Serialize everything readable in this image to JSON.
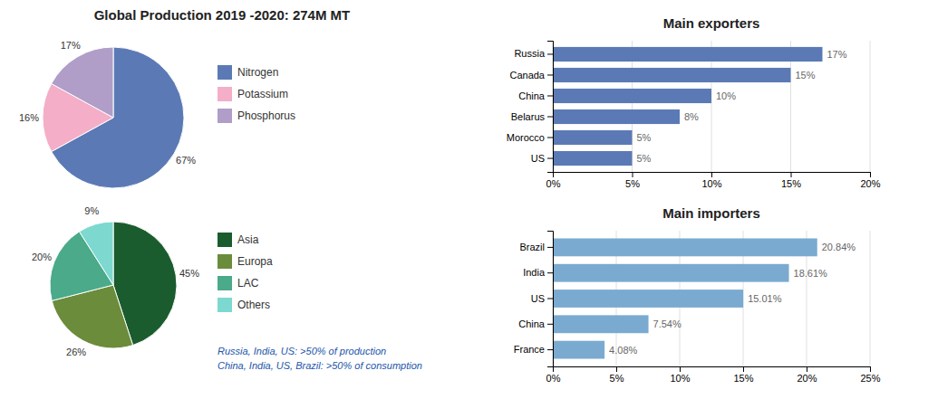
{
  "title": "Global Production  2019 -2020:  274M MT",
  "annotations": [
    "Russia, India, US: >50% of production",
    "China, India, US, Brazil: >50% of consumption"
  ],
  "chart_data": [
    {
      "type": "pie",
      "categories": [
        "Nitrogen",
        "Potassium",
        "Phosphorus"
      ],
      "values": [
        67,
        16,
        17
      ],
      "value_labels": [
        "67%",
        "16%",
        "17%"
      ],
      "colors": [
        "#5b7ab5",
        "#f4aec8",
        "#b09dc8"
      ],
      "data_labels": true,
      "legend": "right"
    },
    {
      "type": "pie",
      "categories": [
        "Asia",
        "Europa",
        "LAC",
        "Others"
      ],
      "values": [
        45,
        26,
        20,
        9
      ],
      "value_labels": [
        "45%",
        "26%",
        "20%",
        "9%"
      ],
      "colors": [
        "#1a5c2e",
        "#6b8c3a",
        "#4aaa8a",
        "#7dd8d0"
      ],
      "data_labels": true,
      "legend": "right"
    },
    {
      "type": "bar",
      "orientation": "horizontal",
      "title": "Main exporters",
      "categories": [
        "Russia",
        "Canada",
        "China",
        "Belarus",
        "Morocco",
        "US"
      ],
      "values": [
        17,
        15,
        10,
        8,
        5,
        5
      ],
      "value_labels": [
        "17%",
        "15%",
        "10%",
        "8%",
        "5%",
        "5%"
      ],
      "color": "#5b7ab5",
      "xlim": [
        0,
        20
      ],
      "xticks": [
        {
          "value": 0,
          "label": "0%"
        },
        {
          "value": 5,
          "label": "5%"
        },
        {
          "value": 10,
          "label": "10%"
        },
        {
          "value": 15,
          "label": "15%"
        },
        {
          "value": 20,
          "label": "20%"
        }
      ],
      "grid": true,
      "data_labels": true
    },
    {
      "type": "bar",
      "orientation": "horizontal",
      "title": "Main importers",
      "categories": [
        "Brazil",
        "India",
        "US",
        "China",
        "France"
      ],
      "values": [
        20.84,
        18.61,
        15.01,
        7.54,
        4.08
      ],
      "value_labels": [
        "20.84%",
        "18.61%",
        "15.01%",
        "7.54%",
        "4.08%"
      ],
      "color": "#7aaad0",
      "xlim": [
        0,
        25
      ],
      "xticks": [
        {
          "value": 0,
          "label": "0%"
        },
        {
          "value": 5,
          "label": "5%"
        },
        {
          "value": 10,
          "label": "10%"
        },
        {
          "value": 15,
          "label": "15%"
        },
        {
          "value": 20,
          "label": "20%"
        },
        {
          "value": 25,
          "label": "25%"
        }
      ],
      "grid": true,
      "data_labels": true
    }
  ]
}
